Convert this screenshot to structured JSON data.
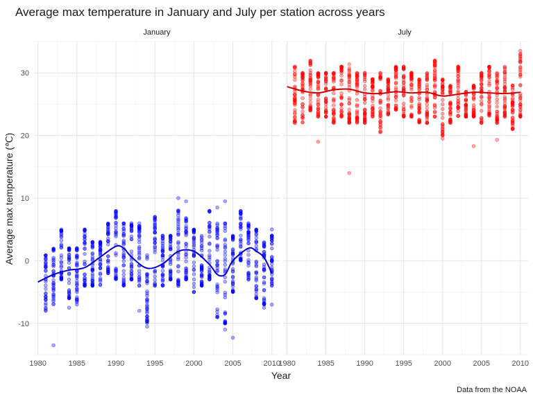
{
  "chart_data": {
    "type": "scatter",
    "title": "Average max temperature in January and July per station across years",
    "xlabel": "Year",
    "ylabel": "Average max temperature (℃)",
    "caption": "Data from the NOAA",
    "xlim": [
      1980,
      2010
    ],
    "ylim": [
      -15,
      35
    ],
    "x_ticks": [
      1980,
      1985,
      1990,
      1995,
      2000,
      2005,
      2010
    ],
    "y_ticks": [
      -10,
      0,
      10,
      20,
      30
    ],
    "grid": true,
    "legend": "none",
    "panels": [
      {
        "name": "January",
        "color": "#0000ff",
        "trend_color": "#0000cc",
        "years": [
          1981,
          1982,
          1983,
          1984,
          1985,
          1986,
          1987,
          1988,
          1989,
          1990,
          1991,
          1992,
          1993,
          1994,
          1995,
          1996,
          1997,
          1998,
          1999,
          2000,
          2001,
          2002,
          2003,
          2004,
          2005,
          2006,
          2007,
          2008,
          2009,
          2010
        ],
        "range_low": [
          -8,
          -7,
          -3,
          -6,
          -7,
          -4,
          -4,
          -4,
          -2,
          -3,
          -4,
          -3,
          -4,
          -10,
          -4,
          -4,
          -3,
          -4,
          -3,
          -5,
          -4,
          -3,
          -9,
          -10,
          -5,
          0,
          -3,
          -6,
          -7,
          -4
        ],
        "range_high": [
          1,
          2,
          5,
          2,
          2,
          5,
          3,
          3,
          6,
          8,
          6,
          6,
          6,
          1,
          7,
          4,
          4,
          8,
          7,
          5,
          4,
          8,
          6,
          6,
          4,
          8,
          6,
          5,
          3,
          4
        ],
        "outliers": [
          {
            "x": 1982,
            "y": -13.5
          },
          {
            "x": 1984,
            "y": -7.5
          },
          {
            "x": 1993,
            "y": -8
          },
          {
            "x": 1994,
            "y": -10.5
          },
          {
            "x": 1998,
            "y": 10
          },
          {
            "x": 1999,
            "y": 9.5
          },
          {
            "x": 2003,
            "y": 8.5
          },
          {
            "x": 2004,
            "y": 9.5
          },
          {
            "x": 2004,
            "y": -11
          },
          {
            "x": 2005,
            "y": -12.3
          },
          {
            "x": 2009,
            "y": -7.5
          },
          {
            "x": 2010,
            "y": -7
          },
          {
            "x": 2010,
            "y": 5
          }
        ],
        "trend": [
          {
            "x": 1980,
            "y": -3.4
          },
          {
            "x": 1982,
            "y": -2.2
          },
          {
            "x": 1984,
            "y": -1.5
          },
          {
            "x": 1986,
            "y": -1.1
          },
          {
            "x": 1988,
            "y": 0.6
          },
          {
            "x": 1990,
            "y": 2.3
          },
          {
            "x": 1991,
            "y": 2.0
          },
          {
            "x": 1992,
            "y": 0.6
          },
          {
            "x": 1994,
            "y": -1.2
          },
          {
            "x": 1996,
            "y": -0.5
          },
          {
            "x": 1998,
            "y": 1.5
          },
          {
            "x": 2000,
            "y": 1.5
          },
          {
            "x": 2002,
            "y": -0.6
          },
          {
            "x": 2003,
            "y": -2.2
          },
          {
            "x": 2004,
            "y": -2.2
          },
          {
            "x": 2005,
            "y": 0.0
          },
          {
            "x": 2007,
            "y": 2.0
          },
          {
            "x": 2008,
            "y": 1.5
          },
          {
            "x": 2009,
            "y": 0.5
          },
          {
            "x": 2010,
            "y": -2.0
          }
        ]
      },
      {
        "name": "July",
        "color": "#ff0000",
        "trend_color": "#cc0000",
        "years": [
          1981,
          1982,
          1983,
          1984,
          1985,
          1986,
          1987,
          1988,
          1989,
          1990,
          1991,
          1992,
          1993,
          1994,
          1995,
          1996,
          1997,
          1998,
          1999,
          2000,
          2001,
          2002,
          2003,
          2004,
          2005,
          2006,
          2007,
          2008,
          2009,
          2010
        ],
        "range_low": [
          22,
          22,
          24,
          23,
          23,
          22,
          23,
          22,
          22,
          22,
          23,
          20.5,
          23,
          24,
          23,
          23,
          22,
          22,
          23,
          20,
          22,
          23,
          23,
          23,
          22,
          23,
          22,
          23,
          21,
          23
        ],
        "range_high": [
          31,
          30,
          32,
          30,
          30,
          30,
          31,
          31.5,
          30,
          30,
          29,
          30,
          29,
          31,
          31,
          30,
          29,
          30,
          32,
          29,
          28,
          31,
          27,
          28,
          30,
          31,
          30,
          31,
          28,
          33
        ],
        "outliers": [
          {
            "x": 1984,
            "y": 19
          },
          {
            "x": 1988,
            "y": 14
          },
          {
            "x": 2000,
            "y": 19.5
          },
          {
            "x": 2004,
            "y": 18.3
          },
          {
            "x": 2007,
            "y": 19.3
          },
          {
            "x": 2010,
            "y": 33.5
          }
        ],
        "trend": [
          {
            "x": 1980,
            "y": 27.8
          },
          {
            "x": 1982,
            "y": 27.1
          },
          {
            "x": 1984,
            "y": 26.8
          },
          {
            "x": 1986,
            "y": 27.3
          },
          {
            "x": 1988,
            "y": 27.4
          },
          {
            "x": 1990,
            "y": 26.8
          },
          {
            "x": 1992,
            "y": 26.7
          },
          {
            "x": 1994,
            "y": 27.0
          },
          {
            "x": 1996,
            "y": 26.8
          },
          {
            "x": 1998,
            "y": 26.9
          },
          {
            "x": 2000,
            "y": 26.3
          },
          {
            "x": 2002,
            "y": 26.6
          },
          {
            "x": 2004,
            "y": 26.9
          },
          {
            "x": 2006,
            "y": 26.8
          },
          {
            "x": 2008,
            "y": 26.7
          },
          {
            "x": 2010,
            "y": 26.9
          }
        ]
      }
    ]
  }
}
